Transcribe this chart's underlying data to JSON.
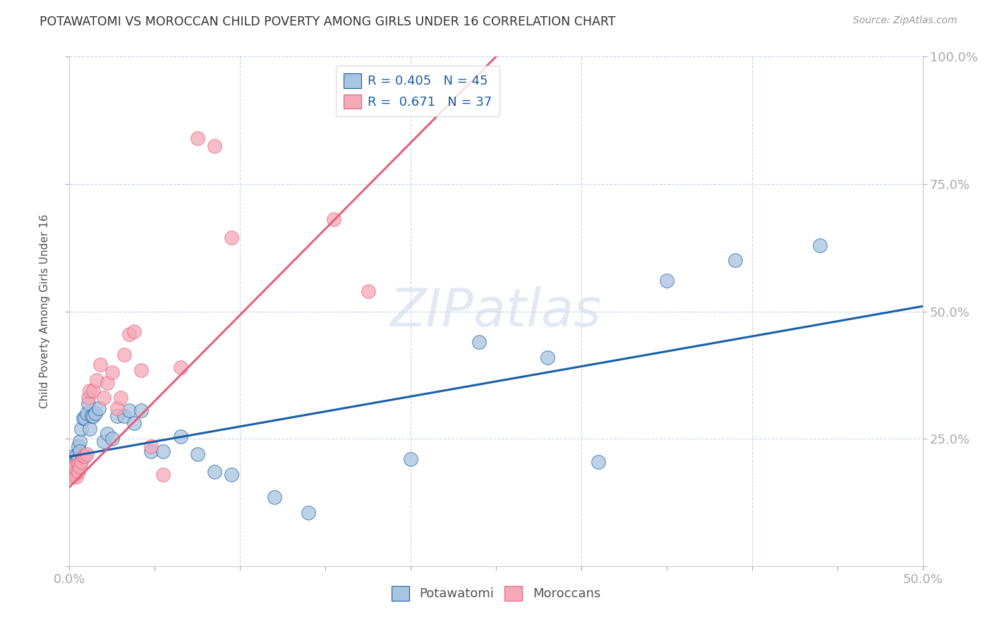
{
  "title": "POTAWATOMI VS MOROCCAN CHILD POVERTY AMONG GIRLS UNDER 16 CORRELATION CHART",
  "source": "Source: ZipAtlas.com",
  "ylabel": "Child Poverty Among Girls Under 16",
  "xlim": [
    0.0,
    0.5
  ],
  "ylim": [
    0.0,
    1.0
  ],
  "xticks": [
    0.0,
    0.05,
    0.1,
    0.15,
    0.2,
    0.25,
    0.3,
    0.35,
    0.4,
    0.45,
    0.5
  ],
  "xticklabels": [
    "0.0%",
    "",
    "",
    "",
    "",
    "",
    "",
    "",
    "",
    "",
    "50.0%"
  ],
  "yticks": [
    0.0,
    0.25,
    0.5,
    0.75,
    1.0
  ],
  "yticklabels_right": [
    "",
    "25.0%",
    "50.0%",
    "75.0%",
    "100.0%"
  ],
  "watermark": "ZIPatlas",
  "potawatomi_color": "#a8c4e0",
  "moroccan_color": "#f4a8b8",
  "line_blue": "#1a5fa8",
  "line_pink": "#e8607a",
  "background_color": "#ffffff",
  "grid_color": "#c8d4e8",
  "potawatomi_x": [
    0.001,
    0.001,
    0.002,
    0.002,
    0.003,
    0.003,
    0.004,
    0.004,
    0.005,
    0.005,
    0.006,
    0.006,
    0.007,
    0.008,
    0.009,
    0.01,
    0.011,
    0.012,
    0.013,
    0.014,
    0.015,
    0.017,
    0.02,
    0.022,
    0.025,
    0.028,
    0.032,
    0.035,
    0.038,
    0.042,
    0.048,
    0.055,
    0.065,
    0.075,
    0.085,
    0.095,
    0.12,
    0.14,
    0.2,
    0.24,
    0.28,
    0.31,
    0.35,
    0.39,
    0.44
  ],
  "potawatomi_y": [
    0.2,
    0.185,
    0.215,
    0.195,
    0.205,
    0.195,
    0.215,
    0.205,
    0.235,
    0.21,
    0.245,
    0.225,
    0.27,
    0.29,
    0.29,
    0.3,
    0.32,
    0.27,
    0.295,
    0.295,
    0.3,
    0.31,
    0.245,
    0.26,
    0.25,
    0.295,
    0.295,
    0.305,
    0.28,
    0.305,
    0.225,
    0.225,
    0.255,
    0.22,
    0.185,
    0.18,
    0.135,
    0.105,
    0.21,
    0.44,
    0.41,
    0.205,
    0.56,
    0.6,
    0.63
  ],
  "moroccan_x": [
    0.001,
    0.001,
    0.002,
    0.002,
    0.003,
    0.003,
    0.004,
    0.004,
    0.005,
    0.005,
    0.006,
    0.007,
    0.008,
    0.009,
    0.01,
    0.011,
    0.012,
    0.014,
    0.016,
    0.018,
    0.02,
    0.022,
    0.025,
    0.028,
    0.03,
    0.032,
    0.035,
    0.038,
    0.042,
    0.048,
    0.055,
    0.065,
    0.075,
    0.085,
    0.095,
    0.155,
    0.175
  ],
  "moroccan_y": [
    0.195,
    0.18,
    0.185,
    0.175,
    0.19,
    0.195,
    0.185,
    0.175,
    0.2,
    0.185,
    0.195,
    0.205,
    0.215,
    0.215,
    0.22,
    0.33,
    0.345,
    0.345,
    0.365,
    0.395,
    0.33,
    0.36,
    0.38,
    0.31,
    0.33,
    0.415,
    0.455,
    0.46,
    0.385,
    0.235,
    0.18,
    0.39,
    0.84,
    0.825,
    0.645,
    0.68,
    0.54
  ],
  "blue_line_x0": 0.0,
  "blue_line_y0": 0.215,
  "blue_line_x1": 0.5,
  "blue_line_y1": 0.51,
  "pink_line_x0": 0.0,
  "pink_line_y0": 0.155,
  "pink_line_x1": 0.25,
  "pink_line_y1": 1.0
}
